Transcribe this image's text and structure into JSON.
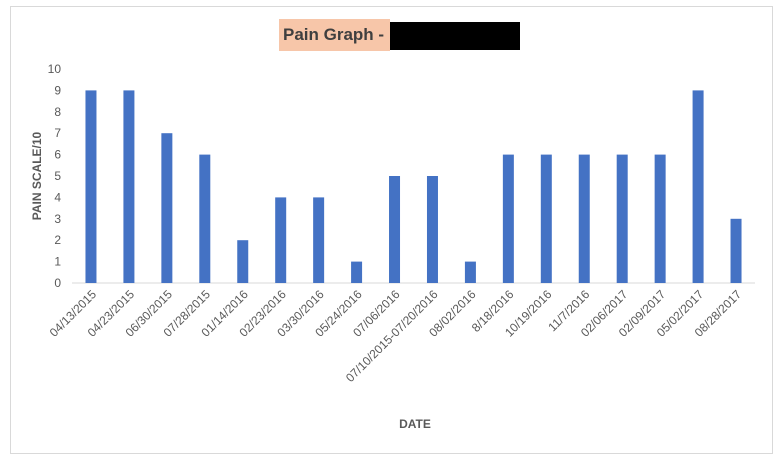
{
  "chart_data": {
    "type": "bar",
    "title": "Pain Graph -",
    "title_redacted": true,
    "xlabel": "DATE",
    "ylabel": "PAIN SCALE/10",
    "ylim": [
      0,
      10
    ],
    "yticks": [
      0,
      1,
      2,
      3,
      4,
      5,
      6,
      7,
      8,
      9,
      10
    ],
    "grid": false,
    "legend": "none",
    "bar_color": "#4472c4",
    "categories": [
      "04/13/2015",
      "04/23/2015",
      "06/30/2015",
      "07/28/2015",
      "01/14/2016",
      "02/23/2016",
      "03/30/2016",
      "05/24/2016",
      "07/06/2016",
      "07/10/2015-07/20/2016",
      "08/02/2016",
      "8/18/2016",
      "10/19/2016",
      "11/7/2016",
      "02/06/2017",
      "02/09/2017",
      "05/02/2017",
      "08/28/2017"
    ],
    "values": [
      9,
      9,
      7,
      6,
      2,
      4,
      4,
      1,
      5,
      5,
      1,
      6,
      6,
      6,
      6,
      6,
      9,
      3
    ]
  }
}
